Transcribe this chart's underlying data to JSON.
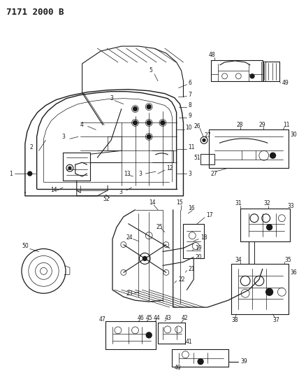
{
  "title": "7171 2000 B",
  "bg_color": "#ffffff",
  "line_color": "#1a1a1a",
  "fig_width": 4.28,
  "fig_height": 5.33,
  "dpi": 100,
  "label_fontsize": 5.5,
  "title_fontsize": 9
}
